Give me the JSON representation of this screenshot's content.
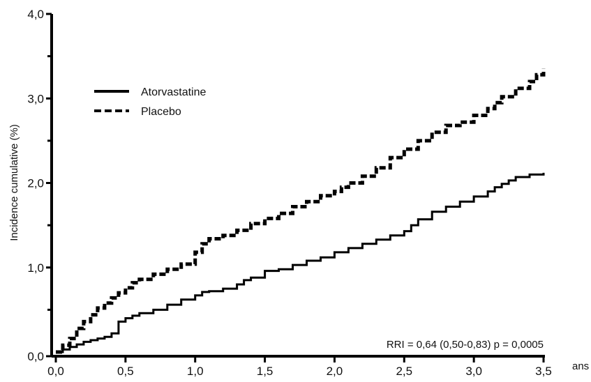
{
  "chart_data": {
    "type": "line",
    "xlabel": "ans",
    "ylabel": "Incidence cumulative (%)",
    "xlim": [
      0,
      3.5
    ],
    "ylim": [
      0,
      4.0
    ],
    "x_ticks": [
      0,
      0.5,
      1.0,
      1.5,
      2.0,
      2.5,
      3.0,
      3.5
    ],
    "x_tick_labels": [
      "0,0",
      "0,5",
      "1,0",
      "1,5",
      "2,0",
      "2,5",
      "3,0",
      "3,5"
    ],
    "y_ticks": [
      0,
      1.0,
      2.0,
      3.0,
      4.0
    ],
    "y_tick_labels": [
      "0,0",
      "1,0",
      "2,0",
      "3,0",
      "4,0"
    ],
    "grid": false,
    "legend_position": "top-left",
    "annotation": "RRI = 0,64 (0,50-0,83)  p = 0,0005",
    "series": [
      {
        "name": "Atorvastatine",
        "style": "solid",
        "color": "#000000",
        "x": [
          0,
          0.05,
          0.1,
          0.15,
          0.2,
          0.25,
          0.3,
          0.35,
          0.4,
          0.45,
          0.5,
          0.55,
          0.6,
          0.7,
          0.8,
          0.9,
          1.0,
          1.05,
          1.1,
          1.2,
          1.3,
          1.35,
          1.4,
          1.5,
          1.6,
          1.7,
          1.8,
          1.9,
          2.0,
          2.1,
          2.2,
          2.3,
          2.4,
          2.5,
          2.55,
          2.6,
          2.7,
          2.8,
          2.9,
          3.0,
          3.1,
          3.15,
          3.2,
          3.25,
          3.3,
          3.4,
          3.5
        ],
        "y": [
          0,
          0.03,
          0.06,
          0.09,
          0.12,
          0.14,
          0.16,
          0.18,
          0.22,
          0.36,
          0.4,
          0.43,
          0.46,
          0.5,
          0.56,
          0.62,
          0.67,
          0.71,
          0.72,
          0.75,
          0.8,
          0.85,
          0.88,
          0.96,
          0.98,
          1.03,
          1.08,
          1.12,
          1.18,
          1.23,
          1.28,
          1.33,
          1.38,
          1.43,
          1.5,
          1.57,
          1.66,
          1.72,
          1.78,
          1.84,
          1.9,
          1.95,
          1.99,
          2.03,
          2.07,
          2.1,
          2.12
        ]
      },
      {
        "name": "Placebo",
        "style": "dashed",
        "color": "#000000",
        "x": [
          0,
          0.05,
          0.1,
          0.15,
          0.2,
          0.25,
          0.3,
          0.35,
          0.4,
          0.45,
          0.5,
          0.55,
          0.6,
          0.7,
          0.8,
          0.9,
          1.0,
          1.05,
          1.1,
          1.2,
          1.3,
          1.4,
          1.5,
          1.6,
          1.7,
          1.8,
          1.9,
          2.0,
          2.05,
          2.1,
          2.2,
          2.3,
          2.4,
          2.5,
          2.6,
          2.7,
          2.8,
          2.9,
          3.0,
          3.1,
          3.15,
          3.2,
          3.3,
          3.4,
          3.45,
          3.5
        ],
        "y": [
          0,
          0.08,
          0.16,
          0.28,
          0.36,
          0.44,
          0.52,
          0.58,
          0.64,
          0.7,
          0.76,
          0.82,
          0.86,
          0.92,
          0.98,
          1.04,
          1.18,
          1.28,
          1.34,
          1.38,
          1.44,
          1.52,
          1.58,
          1.64,
          1.72,
          1.78,
          1.85,
          1.9,
          1.95,
          2.0,
          2.08,
          2.18,
          2.3,
          2.4,
          2.5,
          2.6,
          2.68,
          2.72,
          2.8,
          2.88,
          2.95,
          3.02,
          3.12,
          3.2,
          3.28,
          3.35
        ]
      }
    ]
  }
}
